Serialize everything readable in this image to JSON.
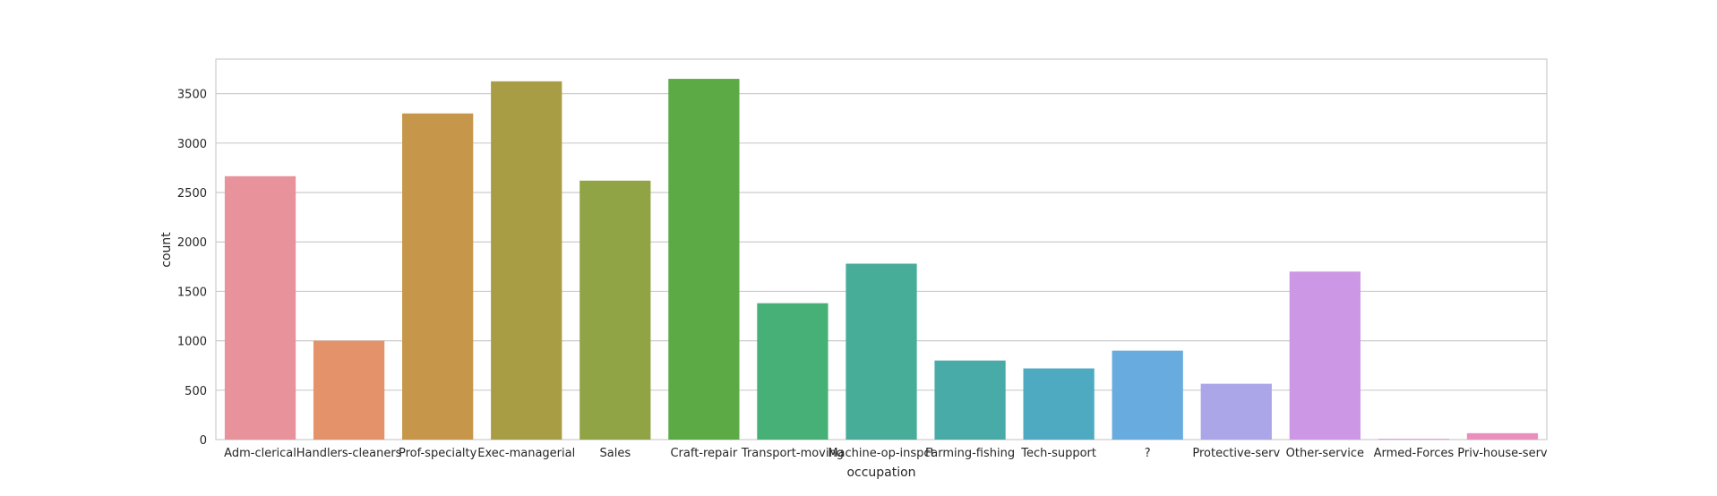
{
  "chart_data": {
    "type": "bar",
    "categories": [
      "Adm-clerical",
      "Handlers-cleaners",
      "Prof-specialty",
      "Exec-managerial",
      "Sales",
      "Craft-repair",
      "Transport-moving",
      "Machine-op-inspct",
      "Farming-fishing",
      "Tech-support",
      "?",
      "Protective-serv",
      "Other-service",
      "Armed-Forces",
      "Priv-house-serv"
    ],
    "values": [
      2665,
      1000,
      3300,
      3625,
      2620,
      3650,
      1380,
      1780,
      800,
      720,
      900,
      565,
      1700,
      8,
      65
    ],
    "colors": [
      "#e8929c",
      "#e3926a",
      "#c6974a",
      "#a89d45",
      "#90a345",
      "#5caa45",
      "#47b077",
      "#48ad98",
      "#49aba7",
      "#4eaac0",
      "#67abdf",
      "#aaa6e8",
      "#cc97e4",
      "#e690d0",
      "#ea8fbd"
    ],
    "xlabel": "occupation",
    "ylabel": "count",
    "yticks": [
      0,
      500,
      1000,
      1500,
      2000,
      2500,
      3000,
      3500
    ],
    "ylim": [
      0,
      3850
    ],
    "grid": true,
    "title": ""
  }
}
